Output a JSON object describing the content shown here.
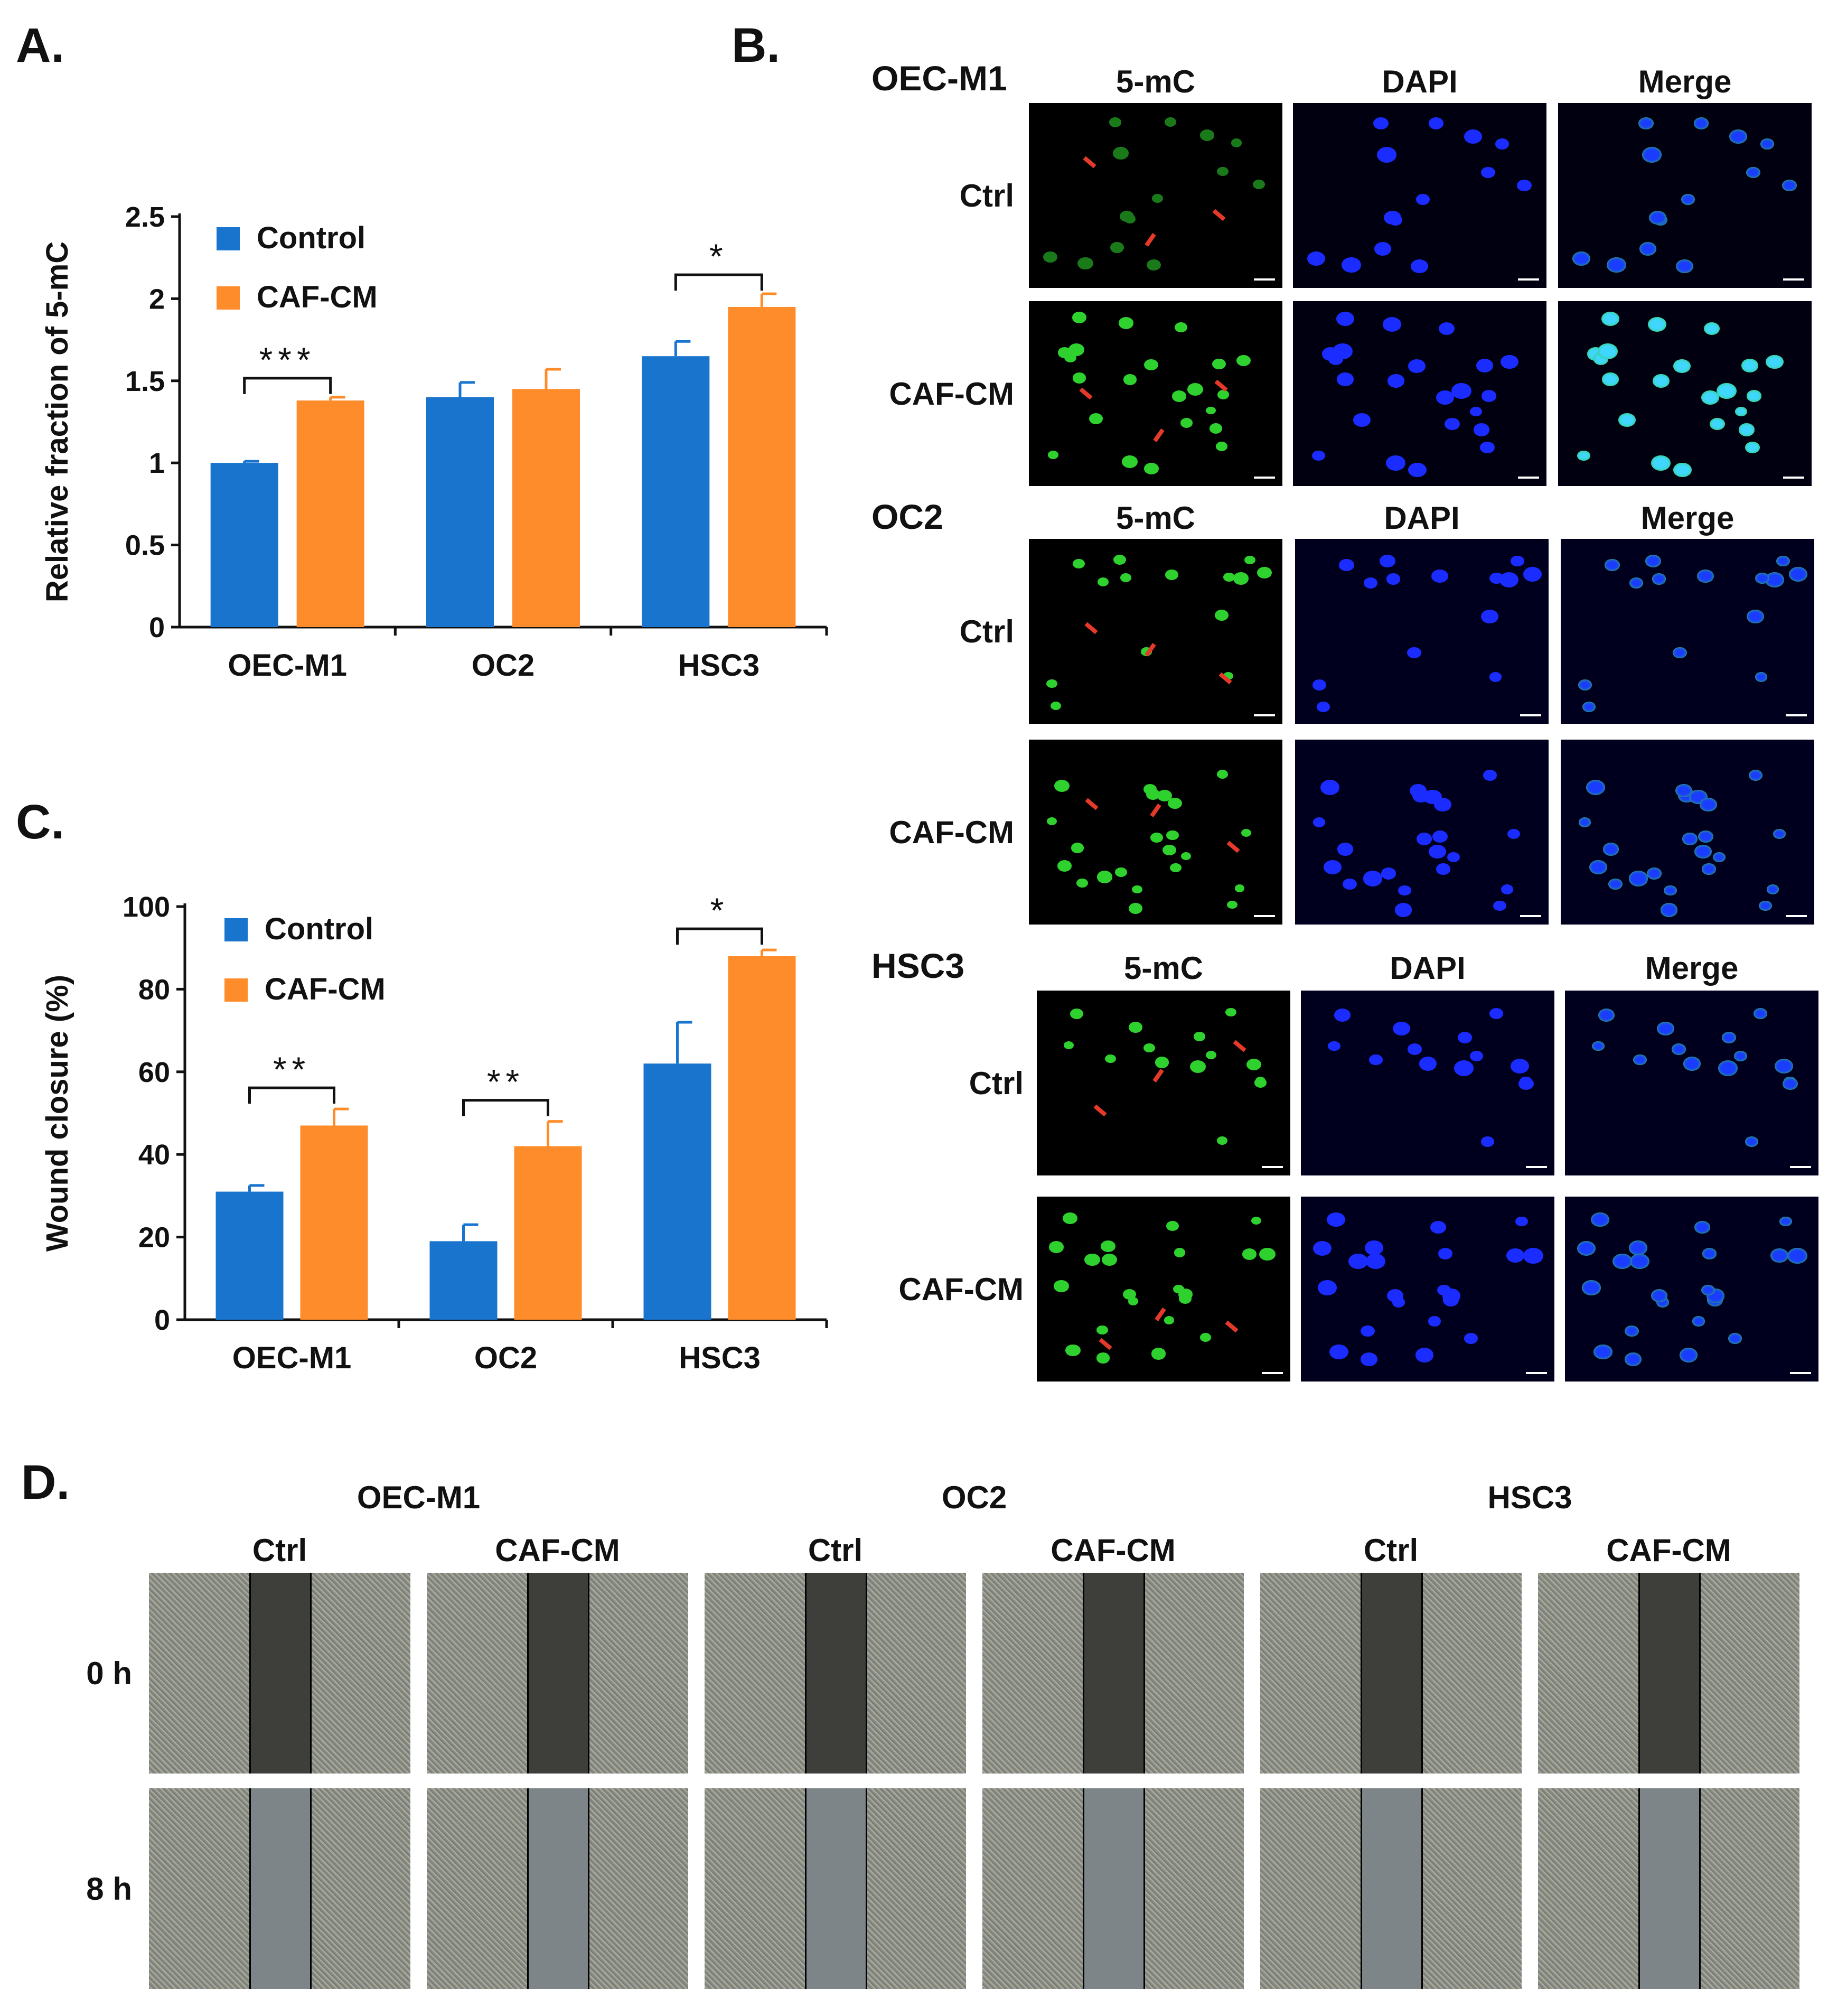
{
  "panels": {
    "a": "A.",
    "b": "B.",
    "c": "C.",
    "d": "D."
  },
  "colors": {
    "control": "#1874CD",
    "cafcm": "#FF8C2A"
  },
  "chart_data": [
    {
      "type": "bar",
      "categories": [
        "OEC-M1",
        "OC2",
        "HSC3"
      ],
      "series": [
        {
          "name": "Control",
          "values": [
            1.0,
            1.4,
            1.65
          ],
          "errors": [
            0.01,
            0.09,
            0.09
          ]
        },
        {
          "name": "CAF-CM",
          "values": [
            1.38,
            1.45,
            1.95
          ],
          "errors": [
            0.02,
            0.12,
            0.08
          ]
        }
      ],
      "ylabel": "Relative fraction of 5-mC",
      "yticks": [
        "0",
        "0.5",
        "1",
        "1.5",
        "2",
        "2.5"
      ],
      "ylim": [
        0,
        2.5
      ],
      "legend": "top-left",
      "significance": [
        {
          "category": "OEC-M1",
          "label": "***"
        },
        {
          "category": "HSC3",
          "label": "*"
        }
      ]
    },
    {
      "type": "bar",
      "categories": [
        "OEC-M1",
        "OC2",
        "HSC3"
      ],
      "series": [
        {
          "name": "Control",
          "values": [
            31,
            19,
            62
          ],
          "errors": [
            1.5,
            4,
            10
          ]
        },
        {
          "name": "CAF-CM",
          "values": [
            47,
            42,
            88
          ],
          "errors": [
            4,
            6,
            1.5
          ]
        }
      ],
      "ylabel": "Wound closure (%)",
      "yticks": [
        "0",
        "20",
        "40",
        "60",
        "80",
        "100"
      ],
      "ylim": [
        0,
        100
      ],
      "legend": "top-left",
      "significance": [
        {
          "category": "OEC-M1",
          "label": "**"
        },
        {
          "category": "OC2",
          "label": "**"
        },
        {
          "category": "HSC3",
          "label": "*"
        }
      ]
    }
  ],
  "panel_b": {
    "columns": [
      "5-mC",
      "DAPI",
      "Merge"
    ],
    "groups": [
      {
        "title": "OEC-M1",
        "rows": [
          "Ctrl",
          "CAF-CM"
        ]
      },
      {
        "title": "OC2",
        "rows": [
          "Ctrl",
          "CAF-CM"
        ]
      },
      {
        "title": "HSC3",
        "rows": [
          "Ctrl",
          "CAF-CM"
        ]
      }
    ]
  },
  "panel_d": {
    "cell_lines": [
      "OEC-M1",
      "OC2",
      "HSC3"
    ],
    "conditions": [
      "Ctrl",
      "CAF-CM",
      "Ctrl",
      "CAF-CM",
      "Ctrl",
      "CAF-CM"
    ],
    "timepoints": [
      "0 h",
      "8 h"
    ]
  }
}
